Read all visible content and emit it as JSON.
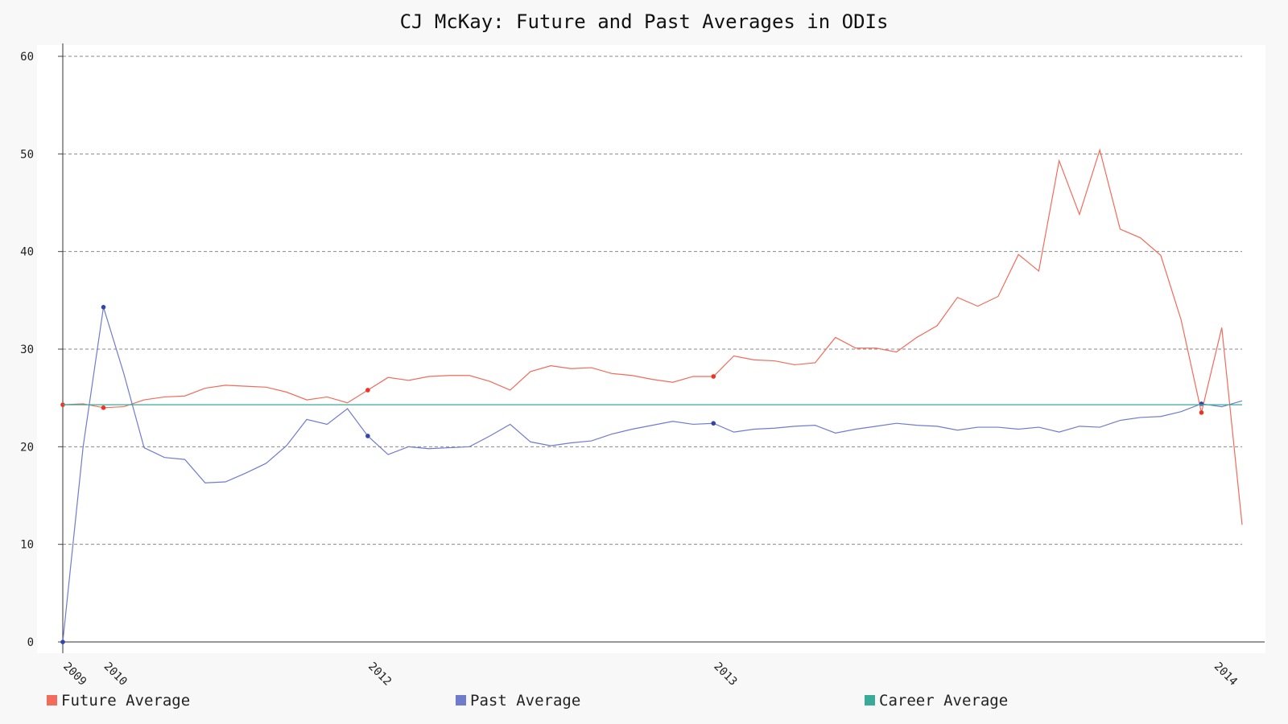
{
  "chart_data": {
    "type": "line",
    "title": "CJ McKay: Future and Past Averages in ODIs",
    "xlabel": "",
    "ylabel": "",
    "ylim": [
      0,
      60
    ],
    "yticks": [
      0,
      10,
      20,
      30,
      40,
      50,
      60
    ],
    "xticks": [
      "2009",
      "2010",
      "2012",
      "2013",
      "2014"
    ],
    "grid": true,
    "legend_position": "bottom",
    "x": [
      0,
      1,
      2,
      3,
      4,
      5,
      6,
      7,
      8,
      9,
      10,
      11,
      12,
      13,
      14,
      15,
      16,
      17,
      18,
      19,
      20,
      21,
      22,
      23,
      24,
      25,
      26,
      27,
      28,
      29,
      30,
      31,
      32,
      33,
      34,
      35,
      36,
      37,
      38,
      39,
      40,
      41,
      42,
      43,
      44,
      45,
      46,
      47,
      48,
      49,
      50,
      51,
      52,
      53,
      54,
      55,
      56,
      57,
      58
    ],
    "xtick_positions": [
      0,
      2,
      15,
      32,
      56.6
    ],
    "series": [
      {
        "name": "Future Average",
        "color": "#f26b5b",
        "values": [
          24.3,
          24.4,
          24.0,
          24.1,
          24.8,
          25.1,
          25.2,
          26.0,
          26.3,
          26.2,
          26.1,
          25.6,
          24.8,
          25.1,
          24.5,
          25.8,
          27.1,
          26.8,
          27.2,
          27.3,
          27.3,
          26.7,
          25.8,
          27.7,
          28.3,
          28.0,
          28.1,
          27.5,
          27.3,
          26.9,
          26.6,
          27.2,
          27.2,
          29.3,
          28.9,
          28.8,
          28.4,
          28.6,
          31.2,
          30.1,
          30.1,
          29.7,
          31.2,
          32.4,
          35.3,
          34.4,
          35.4,
          39.7,
          38.0,
          49.3,
          43.8,
          50.4,
          42.3,
          41.4,
          39.6,
          33.0,
          23.5,
          32.2,
          12.0
        ],
        "markers": [
          [
            0,
            24.3
          ],
          [
            2,
            24.0
          ],
          [
            15,
            25.8
          ],
          [
            32,
            27.2
          ],
          [
            56,
            23.5
          ]
        ]
      },
      {
        "name": "Past Average",
        "color": "#6f7cce",
        "values": [
          0.0,
          20.0,
          34.3,
          27.5,
          19.9,
          18.9,
          18.7,
          16.3,
          16.4,
          17.3,
          18.3,
          20.1,
          22.8,
          22.3,
          23.9,
          21.1,
          19.2,
          20.0,
          19.8,
          19.9,
          20.0,
          21.1,
          22.3,
          20.5,
          20.1,
          20.4,
          20.6,
          21.3,
          21.8,
          22.2,
          22.6,
          22.3,
          22.4,
          21.5,
          21.8,
          21.9,
          22.1,
          22.2,
          21.4,
          21.8,
          22.1,
          22.4,
          22.2,
          22.1,
          21.7,
          22.0,
          22.0,
          21.8,
          22.0,
          21.5,
          22.1,
          22.0,
          22.7,
          23.0,
          23.1,
          23.6,
          24.4,
          24.1,
          24.7
        ],
        "markers": [
          [
            0,
            0.0
          ],
          [
            2,
            34.3
          ],
          [
            15,
            21.1
          ],
          [
            32,
            22.4
          ],
          [
            56,
            24.4
          ]
        ]
      },
      {
        "name": "Career Average",
        "color": "#3aaa99",
        "values": [
          24.3,
          24.3,
          24.3,
          24.3,
          24.3,
          24.3,
          24.3,
          24.3,
          24.3,
          24.3,
          24.3,
          24.3,
          24.3,
          24.3,
          24.3,
          24.3,
          24.3,
          24.3,
          24.3,
          24.3,
          24.3,
          24.3,
          24.3,
          24.3,
          24.3,
          24.3,
          24.3,
          24.3,
          24.3,
          24.3,
          24.3,
          24.3,
          24.3,
          24.3,
          24.3,
          24.3,
          24.3,
          24.3,
          24.3,
          24.3,
          24.3,
          24.3,
          24.3,
          24.3,
          24.3,
          24.3,
          24.3,
          24.3,
          24.3,
          24.3,
          24.3,
          24.3,
          24.3,
          24.3,
          24.3,
          24.3,
          24.3,
          24.3,
          24.3
        ],
        "markers": []
      }
    ]
  }
}
